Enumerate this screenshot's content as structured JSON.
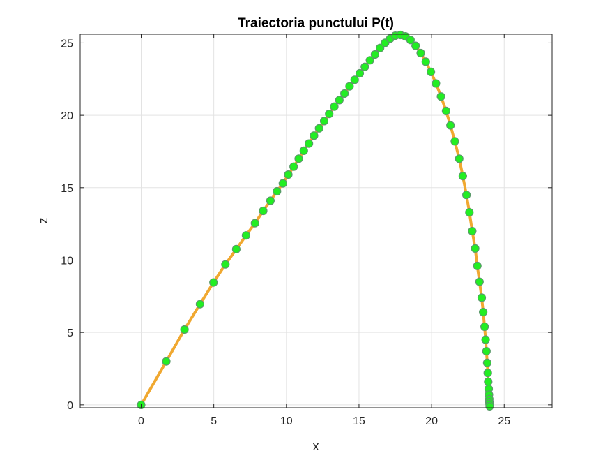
{
  "chart_data": {
    "type": "scatter",
    "title": "Traiectoria punctului P(t)",
    "xlabel": "x",
    "ylabel": "z",
    "xlim": [
      -4.2,
      28.3
    ],
    "ylim": [
      -0.2,
      25.6
    ],
    "xticks": [
      0,
      5,
      10,
      15,
      20,
      25
    ],
    "yticks": [
      0,
      5,
      10,
      15,
      20,
      25
    ],
    "xtick_labels": [
      "0",
      "5",
      "10",
      "15",
      "20",
      "25"
    ],
    "ytick_labels": [
      "0",
      "5",
      "10",
      "15",
      "20",
      "25"
    ],
    "grid": true,
    "legend": "none",
    "colors": {
      "line": "#f0a830",
      "marker_fill": "#22ee22",
      "marker_edge": "#5a9a6a",
      "grid": "#e3e3e3",
      "axes": "#262626"
    },
    "series": [
      {
        "style": "line+markers",
        "x": [
          0,
          1.73,
          2.98,
          4.05,
          4.98,
          5.8,
          6.55,
          7.22,
          7.84,
          8.4,
          8.9,
          9.35,
          9.76,
          10.13,
          10.5,
          10.85,
          11.2,
          11.55,
          11.9,
          12.25,
          12.6,
          12.95,
          13.3,
          13.65,
          14.0,
          14.35,
          14.7,
          15.05,
          15.4,
          15.75,
          16.1,
          16.45,
          16.8,
          17.15,
          17.5,
          17.85,
          18.2,
          18.55,
          18.9,
          19.25,
          19.6,
          19.95,
          20.3,
          20.65,
          21.0,
          21.3,
          21.6,
          21.9,
          22.15,
          22.4,
          22.6,
          22.8,
          23.0,
          23.15,
          23.3,
          23.45,
          23.55,
          23.65,
          23.72,
          23.78,
          23.83,
          23.87,
          23.9,
          23.93,
          23.95,
          23.97,
          23.98,
          23.99,
          24.0
        ],
        "y": [
          0,
          3.0,
          5.2,
          6.95,
          8.45,
          9.7,
          10.75,
          11.7,
          12.55,
          13.4,
          14.1,
          14.75,
          15.3,
          15.9,
          16.45,
          17.0,
          17.55,
          18.05,
          18.6,
          19.1,
          19.6,
          20.1,
          20.6,
          21.05,
          21.5,
          22.0,
          22.45,
          22.9,
          23.35,
          23.8,
          24.2,
          24.65,
          25.0,
          25.3,
          25.5,
          25.55,
          25.45,
          25.2,
          24.8,
          24.3,
          23.7,
          23.0,
          22.2,
          21.3,
          20.3,
          19.3,
          18.2,
          17.0,
          15.8,
          14.5,
          13.3,
          12.0,
          10.8,
          9.6,
          8.5,
          7.4,
          6.4,
          5.4,
          4.5,
          3.7,
          2.9,
          2.2,
          1.6,
          1.1,
          0.7,
          0.4,
          0.2,
          0.05,
          -0.1
        ]
      }
    ]
  }
}
